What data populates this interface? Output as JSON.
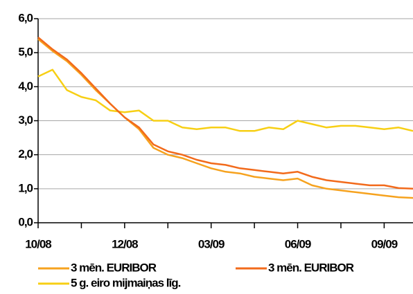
{
  "chart_data": {
    "type": "line",
    "categories": [
      "10/08",
      null,
      null,
      null,
      null,
      null,
      "12/08",
      null,
      null,
      null,
      null,
      null,
      "03/09",
      null,
      null,
      null,
      null,
      null,
      "06/09",
      null,
      null,
      null,
      null,
      null,
      "09/09",
      null,
      null
    ],
    "series": [
      {
        "name": "3 mēn. EURIBOR",
        "color": "#f6a21e",
        "values": [
          5.4,
          5.05,
          4.75,
          4.35,
          3.9,
          3.5,
          3.1,
          2.75,
          2.2,
          2.0,
          1.9,
          1.75,
          1.6,
          1.5,
          1.45,
          1.35,
          1.3,
          1.25,
          1.3,
          1.1,
          1.0,
          0.95,
          0.9,
          0.85,
          0.8,
          0.75,
          0.73
        ]
      },
      {
        "name": "3 mēn. EURIBOR",
        "color": "#f26a1b",
        "values": [
          5.45,
          5.1,
          4.8,
          4.4,
          3.95,
          3.5,
          3.1,
          2.8,
          2.3,
          2.1,
          2.0,
          1.85,
          1.75,
          1.7,
          1.6,
          1.55,
          1.5,
          1.45,
          1.5,
          1.35,
          1.25,
          1.2,
          1.15,
          1.1,
          1.1,
          1.02,
          1.0
        ]
      },
      {
        "name": "5 g. eiro mijmaiņas līg.",
        "color": "#f7cf14",
        "values": [
          4.3,
          4.5,
          3.9,
          3.7,
          3.6,
          3.3,
          3.25,
          3.3,
          3.0,
          3.0,
          2.8,
          2.75,
          2.8,
          2.8,
          2.7,
          2.7,
          2.8,
          2.75,
          3.0,
          2.9,
          2.8,
          2.85,
          2.85,
          2.8,
          2.75,
          2.8,
          2.7
        ]
      }
    ],
    "ylim": [
      0,
      6
    ],
    "yticks": [
      {
        "value": 0,
        "label": "0,0"
      },
      {
        "value": 1,
        "label": "1,0"
      },
      {
        "value": 2,
        "label": "2,0"
      },
      {
        "value": 3,
        "label": "3,0"
      },
      {
        "value": 4,
        "label": "4,0"
      },
      {
        "value": 5,
        "label": "5,0"
      },
      {
        "value": 6,
        "label": "6,0"
      }
    ],
    "grid": true
  }
}
